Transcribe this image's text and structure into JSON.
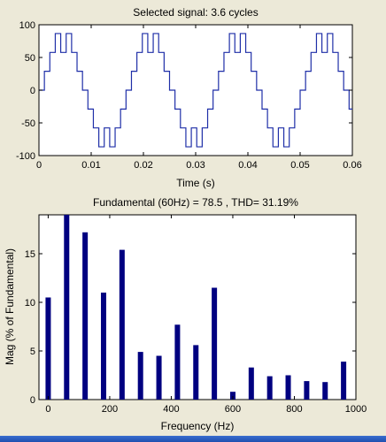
{
  "colors": {
    "background": "#ece9d8",
    "plot_bg": "#ffffff",
    "time_line": "#1f2fa8",
    "bar_fill": "#000080",
    "axis": "#000000"
  },
  "chart_data": [
    {
      "type": "line",
      "title": "Selected signal: 3.6 cycles",
      "xlabel": "Time (s)",
      "ylabel": "",
      "xlim": [
        0,
        0.06
      ],
      "ylim": [
        -100,
        100
      ],
      "xticks": [
        0,
        0.01,
        0.02,
        0.03,
        0.04,
        0.05,
        0.06
      ],
      "xtick_labels": [
        "0",
        "0.01",
        "0.02",
        "0.03",
        "0.04",
        "0.05",
        "0.06"
      ],
      "yticks": [
        -100,
        -50,
        0,
        50,
        100
      ],
      "ytick_labels": [
        "-100",
        "-50",
        "0",
        "50",
        "100"
      ],
      "grid": false,
      "series": [
        {
          "step_levels": [
            0,
            28.9,
            57.7,
            86.6,
            57.7,
            86.6,
            57.7,
            28.9,
            0,
            -28.9,
            -57.7,
            -86.6,
            -57.7,
            -86.6,
            -57.7,
            -28.9
          ],
          "step_duration": 0.0010417,
          "x_start": 0,
          "x_end": 0.06
        }
      ]
    },
    {
      "type": "bar",
      "title": "Fundamental (60Hz) = 78.5 , THD= 31.19%",
      "xlabel": "Frequency (Hz)",
      "ylabel": "Mag (% of Fundamental)",
      "xlim": [
        -30,
        1000
      ],
      "ylim": [
        0,
        19
      ],
      "xticks": [
        0,
        200,
        400,
        600,
        800,
        1000
      ],
      "xtick_labels": [
        "0",
        "200",
        "400",
        "600",
        "800",
        "1000"
      ],
      "yticks": [
        0,
        5,
        10,
        15
      ],
      "ytick_labels": [
        "0",
        "5",
        "10",
        "15"
      ],
      "grid": false,
      "x": [
        0,
        60,
        120,
        180,
        240,
        300,
        360,
        420,
        480,
        540,
        600,
        660,
        720,
        780,
        840,
        900,
        960
      ],
      "values": [
        10.5,
        19.0,
        17.2,
        11.0,
        15.4,
        4.9,
        4.5,
        7.7,
        5.6,
        11.5,
        0.8,
        3.3,
        2.4,
        2.5,
        1.9,
        1.8,
        3.9
      ]
    }
  ]
}
